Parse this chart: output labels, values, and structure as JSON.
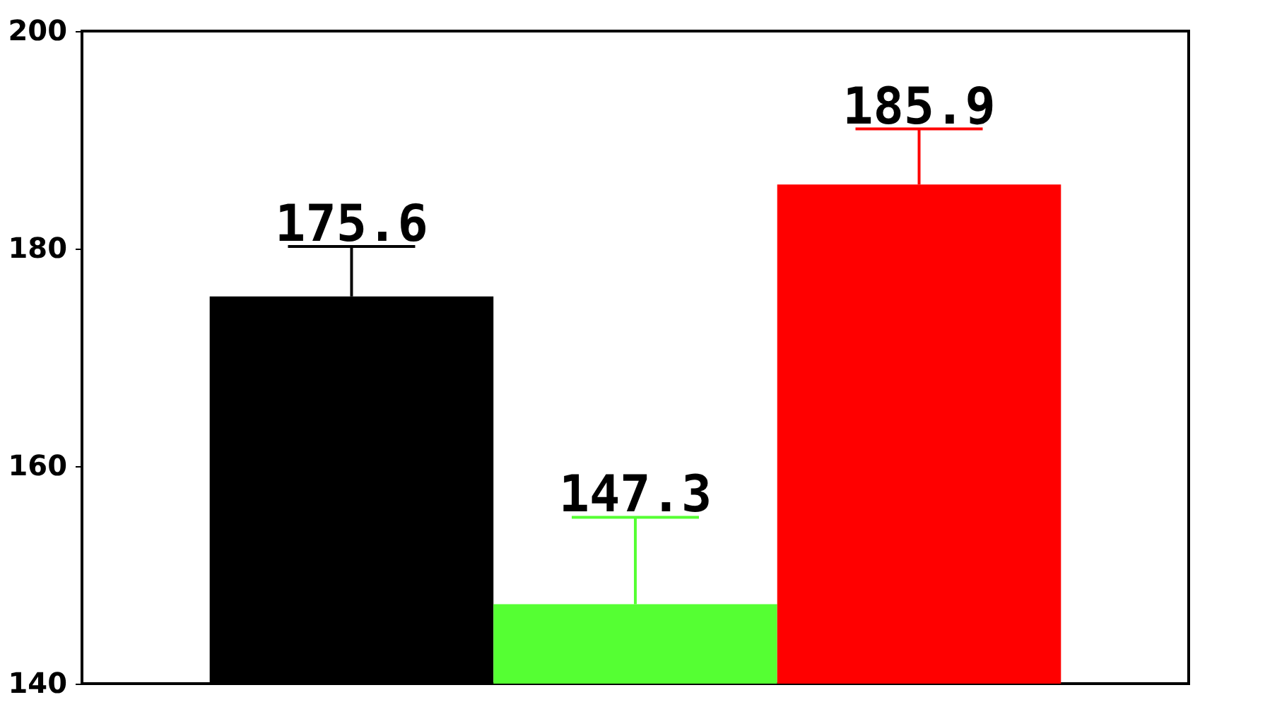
{
  "chart_data": {
    "type": "bar",
    "categories": [
      null,
      null,
      null
    ],
    "values": [
      175.6,
      147.3,
      185.9
    ],
    "colors": [
      "#000000",
      "#55ff33",
      "#ff0000"
    ],
    "errors": [
      [
        175.6,
        180.2
      ],
      [
        147.3,
        155.3
      ],
      [
        185.9,
        191.0
      ]
    ],
    "ylim": [
      140,
      200
    ],
    "yticks": [
      140,
      160,
      180,
      200
    ],
    "data_labels": true,
    "grid": false,
    "tick_labels": "y"
  }
}
